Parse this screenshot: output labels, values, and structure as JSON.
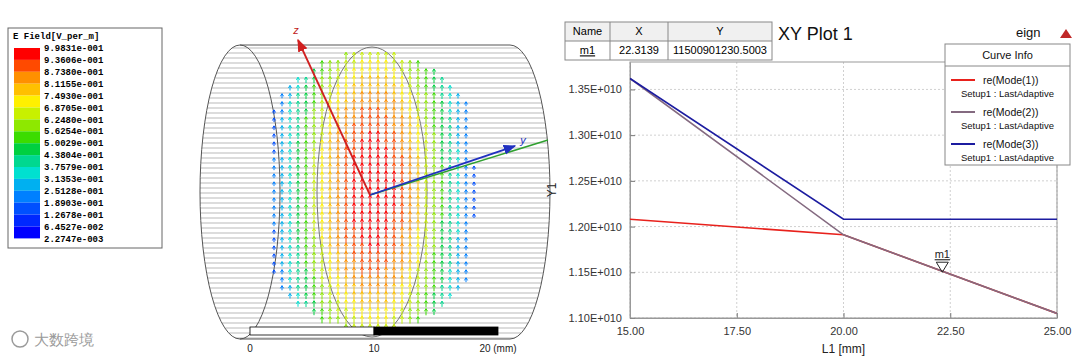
{
  "chart_data": [
    {
      "type": "field",
      "title": "E Field[V_per_m]",
      "colorbar": {
        "ticks": [
          {
            "value": 0.99831,
            "label": "9.9831e-001"
          },
          {
            "value": 0.93606,
            "label": "9.3606e-001"
          },
          {
            "value": 0.8738,
            "label": "8.7380e-001"
          },
          {
            "value": 0.81155,
            "label": "8.1155e-001"
          },
          {
            "value": 0.7493,
            "label": "7.4930e-001"
          },
          {
            "value": 0.68705,
            "label": "6.8705e-001"
          },
          {
            "value": 0.6248,
            "label": "6.2480e-001"
          },
          {
            "value": 0.56254,
            "label": "5.6254e-001"
          },
          {
            "value": 0.50029,
            "label": "5.0029e-001"
          },
          {
            "value": 0.43804,
            "label": "4.3804e-001"
          },
          {
            "value": 0.37579,
            "label": "3.7579e-001"
          },
          {
            "value": 0.31353,
            "label": "3.1353e-001"
          },
          {
            "value": 0.25128,
            "label": "2.5128e-001"
          },
          {
            "value": 0.18903,
            "label": "1.8903e-001"
          },
          {
            "value": 0.12678,
            "label": "1.2678e-001"
          },
          {
            "value": 0.064527,
            "label": "6.4527e-002"
          },
          {
            "value": 0.0022747,
            "label": "2.2747e-003"
          }
        ],
        "colors": [
          "#ff0000",
          "#ff4a00",
          "#ff9000",
          "#ffc000",
          "#fff000",
          "#c8f000",
          "#8ee800",
          "#3cdc00",
          "#00d040",
          "#00d890",
          "#00e0d0",
          "#00b0f0",
          "#0080ff",
          "#0050ff",
          "#0028ff",
          "#0000ff"
        ]
      },
      "axis_labels": [
        "z",
        "y"
      ],
      "scale_bar": {
        "range": [
          0,
          20
        ],
        "ticks": [
          0,
          10,
          {
            "value": 20,
            "label": "20 (mm)"
          }
        ]
      }
    },
    {
      "type": "line",
      "title": "XY Plot 1",
      "header": "eign",
      "x_label": "L1 [mm]",
      "y_label": "Y1",
      "x": [
        15,
        20,
        25
      ],
      "series": [
        {
          "name": "re(Mode(1))",
          "solution": "Setup1 : LastAdaptive",
          "color": "#e8211c",
          "values": [
            12080000000,
            11910000000,
            11050000000
          ]
        },
        {
          "name": "re(Mode(2))",
          "solution": "Setup1 : LastAdaptive",
          "color": "#846a80",
          "values": [
            13620000000,
            11910000000,
            11050000000
          ]
        },
        {
          "name": "re(Mode(3))",
          "solution": "Setup1 : LastAdaptive",
          "color": "#1c1ca0",
          "values": [
            13620000000,
            12080000000,
            12080000000
          ]
        }
      ],
      "xlim": [
        15,
        25
      ],
      "xticks": [
        {
          "value": 15,
          "label": "15.00"
        },
        {
          "value": 17.5,
          "label": "17.50"
        },
        {
          "value": 20,
          "label": "20.00"
        },
        {
          "value": 22.5,
          "label": "22.50"
        },
        {
          "value": 25,
          "label": "25.00"
        }
      ],
      "ylim": [
        11000000000,
        13800000000
      ],
      "yticks": [
        {
          "value": 11000000000,
          "label": "1.10E+010"
        },
        {
          "value": 11500000000,
          "label": "1.15E+010"
        },
        {
          "value": 12000000000,
          "label": "1.20E+010"
        },
        {
          "value": 12500000000,
          "label": "1.25E+010"
        },
        {
          "value": 13000000000,
          "label": "1.30E+010"
        },
        {
          "value": 13500000000,
          "label": "1.35E+010"
        }
      ],
      "grid": true,
      "legend": "upper right",
      "legend_title": "Curve Info",
      "marker_headers": [
        "Name",
        "X",
        "Y"
      ],
      "markers": [
        {
          "name": "m1",
          "x": 22.3139,
          "y": 11500901230.5003
        }
      ]
    }
  ],
  "watermark": "大数跨境"
}
